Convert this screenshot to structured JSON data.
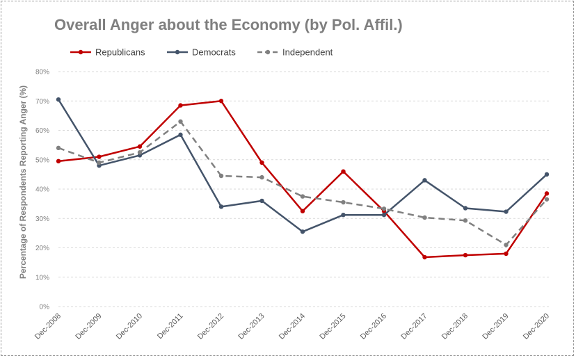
{
  "chart_data": {
    "type": "line",
    "title": "Overall Anger about the Economy (by Pol. Affil.)",
    "xlabel": "",
    "ylabel": "Percentage of Respondents Reporting Anger (%)",
    "ylim": [
      0,
      80
    ],
    "yticks": [
      "0%",
      "10%",
      "20%",
      "30%",
      "40%",
      "50%",
      "60%",
      "70%",
      "80%"
    ],
    "grid": "horizontal dashed",
    "legend_position": "top-left",
    "categories": [
      "Dec-2008",
      "Dec-2009",
      "Dec-2010",
      "Dec-2011",
      "Dec-2012",
      "Dec-2013",
      "Dec-2014",
      "Dec-2015",
      "Dec-2016",
      "Dec-2017",
      "Dec-2018",
      "Dec-2019",
      "Dec-2020"
    ],
    "series": [
      {
        "name": "Republicans",
        "color": "#c00000",
        "dash": "solid",
        "values": [
          49.5,
          51,
          54.5,
          68.5,
          70,
          49,
          32.5,
          46,
          32.5,
          16.8,
          17.5,
          18,
          38.5
        ]
      },
      {
        "name": "Democrats",
        "color": "#44546a",
        "dash": "solid",
        "values": [
          70.5,
          48,
          51.5,
          58.5,
          34,
          36,
          25.5,
          31.2,
          31.2,
          43,
          33.5,
          32.3,
          45
        ]
      },
      {
        "name": "Independent",
        "color": "#808080",
        "dash": "dashed",
        "values": [
          54,
          49,
          52.5,
          63,
          44.5,
          44,
          37.5,
          35.5,
          33.3,
          30.3,
          29.3,
          21,
          36.5
        ]
      }
    ]
  }
}
